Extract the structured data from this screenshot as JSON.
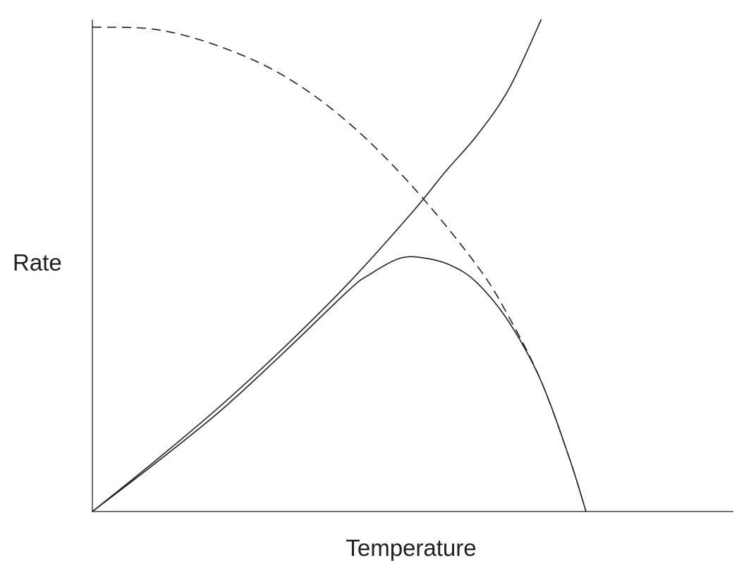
{
  "chart_data": {
    "type": "line",
    "title": "",
    "xlabel": "Temperature",
    "ylabel": "Rate",
    "grid": false,
    "legend": "none",
    "x_ticks": [],
    "y_ticks": [],
    "xlim": [
      0,
      100
    ],
    "ylim": [
      0,
      100
    ],
    "series": [
      {
        "style": "solid",
        "color": "#231f20",
        "x": [
          0,
          10,
          20,
          30,
          40,
          50,
          55,
          60,
          65,
          70
        ],
        "y": [
          0,
          10.5,
          21.5,
          33.5,
          46.5,
          61,
          69,
          76.5,
          86,
          100
        ]
      },
      {
        "style": "dashed",
        "color": "#231f20",
        "x": [
          0,
          10,
          20,
          30,
          40,
          50,
          60,
          65,
          70,
          74.5,
          77
        ],
        "y": [
          98.5,
          98,
          94.5,
          88.5,
          79,
          66,
          50,
          39.5,
          26.5,
          10.5,
          0
        ]
      },
      {
        "style": "solid",
        "color": "#231f20",
        "x": [
          0,
          10,
          20,
          30,
          40,
          43,
          48,
          52,
          56,
          60,
          65,
          70,
          74.5,
          77
        ],
        "y": [
          0,
          10,
          20.5,
          32.5,
          45,
          48,
          51.5,
          51.5,
          50,
          46.5,
          38.5,
          26.5,
          10.5,
          0
        ]
      }
    ]
  }
}
